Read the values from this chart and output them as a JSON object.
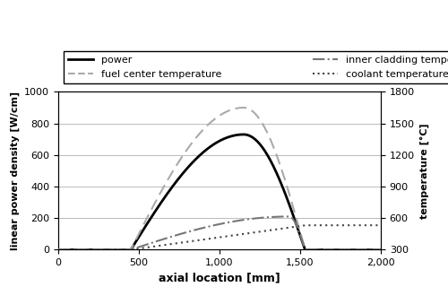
{
  "x_range": [
    0,
    2000
  ],
  "x_ticks": [
    0,
    500,
    1000,
    1500,
    2000
  ],
  "x_tick_labels": [
    "0",
    "500",
    "1,000",
    "1,500",
    "2,000"
  ],
  "xlabel": "axial location [mm]",
  "ylabel_left": "linear power density [W/cm]",
  "ylabel_right": "temperature [°C]",
  "ylim_left": [
    0,
    1000
  ],
  "ylim_right": [
    300,
    1800
  ],
  "yticks_left": [
    0,
    200,
    400,
    600,
    800,
    1000
  ],
  "yticks_right": [
    300,
    600,
    900,
    1200,
    1500,
    1800
  ],
  "power_color": "#000000",
  "fuel_center_color": "#aaaaaa",
  "inner_cladding_color": "#777777",
  "coolant_color": "#444444",
  "active_start": 450,
  "active_end": 1530,
  "power_peak_x": 1150,
  "power_peak_y": 730,
  "fuel_peak_temp": 1650,
  "fuel_peak_x": 1150,
  "cladding_peak_temp": 615,
  "cladding_peak_x": 1430,
  "coolant_start_temp": 300,
  "coolant_end_temp": 532,
  "background_color": "#ffffff",
  "grid_color": "#bbbbbb",
  "legend_order": [
    "power",
    "fuel center temperature",
    "inner cladding temperature",
    "coolant temperature"
  ]
}
